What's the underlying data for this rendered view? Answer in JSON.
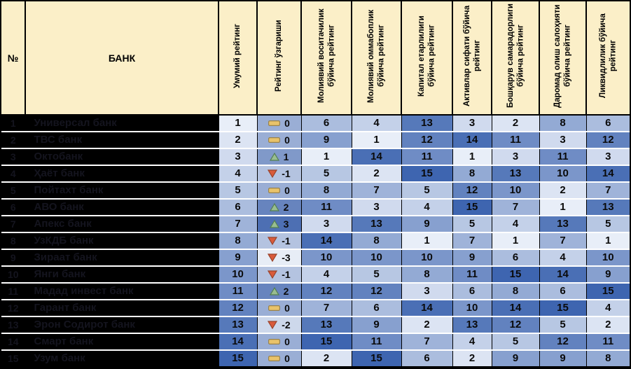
{
  "colors": {
    "header_bg": "#FBEFC8",
    "name_col_bg": "#000000",
    "hidden_text": "#14141E",
    "value_scale_light": "#E8EEF8",
    "value_scale_dark": "#3E65B0",
    "change_scale_light": "#E7EDF6",
    "change_scale_dark": "#4D6FB3",
    "icon_up_fill": "#98BD90",
    "icon_up_border": "#527E52",
    "icon_down_fill": "#D95B3B",
    "icon_down_border": "#99432B",
    "icon_flat_fill": "#E9C36A",
    "icon_flat_border": "#97824F",
    "grid_line": "#000000",
    "row_separator": "#FFFFFF"
  },
  "chart_data": {
    "type": "table",
    "columns": [
      "№",
      "БАНК",
      "Умумий рейтинг",
      "Рейтинг ўзгариши",
      "Молиявий воситачилик бўйича рейтинг",
      "Молиявий оммабоплик бўйича рейтинг",
      "Капитал етарлилиги бўйича рейтинг",
      "Активлар сифати бўйича рейтинг",
      "Бошқарув самарадорлиги бўйича рейтинг",
      "Даромад олиш салоҳияти бўйича рейтинг",
      "Ликвидлилик бўйича рейтинг"
    ],
    "value_range": [
      1,
      15
    ],
    "change_range": [
      -3,
      3
    ],
    "rows": [
      {
        "rank": 1,
        "bank": "Универсал банк",
        "overall": 1,
        "change": 0,
        "ratings": [
          6,
          4,
          13,
          3,
          2,
          8,
          6
        ]
      },
      {
        "rank": 2,
        "bank": "ТВС банк",
        "overall": 2,
        "change": 0,
        "ratings": [
          9,
          1,
          12,
          14,
          11,
          3,
          12
        ]
      },
      {
        "rank": 3,
        "bank": "Октобанк",
        "overall": 3,
        "change": 1,
        "ratings": [
          1,
          14,
          11,
          1,
          3,
          11,
          3
        ]
      },
      {
        "rank": 4,
        "bank": "Ҳаёт банк",
        "overall": 4,
        "change": -1,
        "ratings": [
          5,
          2,
          15,
          8,
          13,
          10,
          14
        ]
      },
      {
        "rank": 5,
        "bank": "Пойтахт банк",
        "overall": 5,
        "change": 0,
        "ratings": [
          8,
          7,
          5,
          12,
          10,
          2,
          7
        ]
      },
      {
        "rank": 6,
        "bank": "АВО банк",
        "overall": 6,
        "change": 2,
        "ratings": [
          11,
          3,
          4,
          15,
          7,
          1,
          13
        ]
      },
      {
        "rank": 7,
        "bank": "Апекс банк",
        "overall": 7,
        "change": 3,
        "ratings": [
          3,
          13,
          9,
          5,
          4,
          13,
          5
        ]
      },
      {
        "rank": 8,
        "bank": "УзКДБ банк",
        "overall": 8,
        "change": -1,
        "ratings": [
          14,
          8,
          1,
          7,
          1,
          7,
          1
        ]
      },
      {
        "rank": 9,
        "bank": "Зираат банк",
        "overall": 9,
        "change": -3,
        "ratings": [
          10,
          10,
          10,
          9,
          6,
          4,
          10
        ]
      },
      {
        "rank": 10,
        "bank": "Янги банк",
        "overall": 10,
        "change": -1,
        "ratings": [
          4,
          5,
          8,
          11,
          15,
          14,
          9
        ]
      },
      {
        "rank": 11,
        "bank": "Мадад инвест банк",
        "overall": 11,
        "change": 2,
        "ratings": [
          12,
          12,
          3,
          6,
          8,
          6,
          15
        ]
      },
      {
        "rank": 12,
        "bank": "Гарант банк",
        "overall": 12,
        "change": 0,
        "ratings": [
          7,
          6,
          14,
          10,
          14,
          15,
          4
        ]
      },
      {
        "rank": 13,
        "bank": "Эрон Содирот банк",
        "overall": 13,
        "change": -2,
        "ratings": [
          13,
          9,
          2,
          13,
          12,
          5,
          2
        ]
      },
      {
        "rank": 14,
        "bank": "Смарт банк",
        "overall": 14,
        "change": 0,
        "ratings": [
          15,
          11,
          7,
          4,
          5,
          12,
          11
        ]
      },
      {
        "rank": 15,
        "bank": "Узум банк",
        "overall": 15,
        "change": 0,
        "ratings": [
          2,
          15,
          6,
          2,
          9,
          9,
          8
        ]
      }
    ]
  }
}
